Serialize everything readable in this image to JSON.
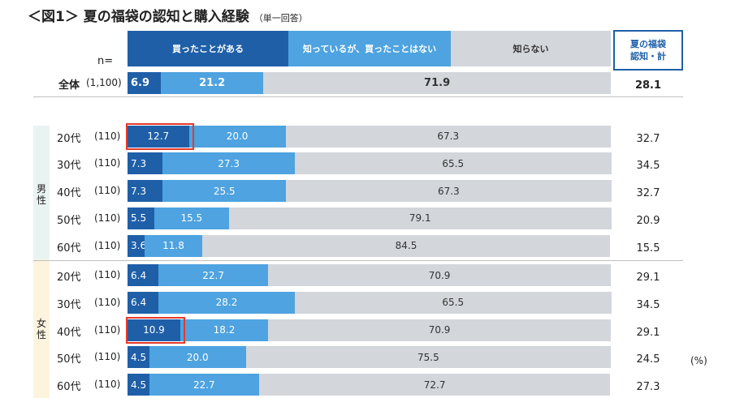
{
  "title": "＜図1＞ 夏の福袋の認知と購入経験",
  "subtitle": "（単一回答）",
  "n_label": "n=",
  "unit": "(%)",
  "awareness_header": [
    "夏の福袋",
    "認知・計"
  ],
  "gender_labels": {
    "male": "男性",
    "female": "女性"
  },
  "colors": {
    "bought": "#1f5fa8",
    "not_bought": "#4ea3e0",
    "never": "#d3d6db",
    "male_band": "#e9f4f2",
    "female_band": "#fdf4de",
    "highlight": "#e53a2c"
  },
  "chart_data": {
    "type": "bar",
    "orientation": "horizontal",
    "stacked": true,
    "series": [
      {
        "name": "買ったことがある",
        "values": [
          6.9,
          12.7,
          7.3,
          7.3,
          5.5,
          3.6,
          6.4,
          6.4,
          10.9,
          4.5,
          4.5
        ]
      },
      {
        "name": "知っているが、買ったことはない",
        "values": [
          21.2,
          20.0,
          27.3,
          25.5,
          15.5,
          11.8,
          22.7,
          28.2,
          18.2,
          20.0,
          22.7
        ]
      },
      {
        "name": "知らない",
        "values": [
          71.9,
          67.3,
          65.5,
          67.3,
          79.1,
          84.5,
          70.9,
          65.5,
          70.9,
          75.5,
          72.7
        ]
      }
    ],
    "rows": [
      {
        "label": "全体",
        "n": "(1,100)",
        "group": "total",
        "awareness": "28.1",
        "labels": [
          "6.9",
          "21.2",
          "71.9"
        ],
        "bold": true,
        "highlight": false
      },
      {
        "label": "20代",
        "n": "(110)",
        "group": "male",
        "awareness": "32.7",
        "labels": [
          "12.7",
          "20.0",
          "67.3"
        ],
        "highlight": true
      },
      {
        "label": "30代",
        "n": "(110)",
        "group": "male",
        "awareness": "34.5",
        "labels": [
          "7.3",
          "27.3",
          "65.5"
        ],
        "highlight": false
      },
      {
        "label": "40代",
        "n": "(110)",
        "group": "male",
        "awareness": "32.7",
        "labels": [
          "7.3",
          "25.5",
          "67.3"
        ],
        "highlight": false
      },
      {
        "label": "50代",
        "n": "(110)",
        "group": "male",
        "awareness": "20.9",
        "labels": [
          "5.5",
          "15.5",
          "79.1"
        ],
        "highlight": false
      },
      {
        "label": "60代",
        "n": "(110)",
        "group": "male",
        "awareness": "15.5",
        "labels": [
          "3.6",
          "11.8",
          "84.5"
        ],
        "highlight": false
      },
      {
        "label": "20代",
        "n": "(110)",
        "group": "female",
        "awareness": "29.1",
        "labels": [
          "6.4",
          "22.7",
          "70.9"
        ],
        "highlight": false
      },
      {
        "label": "30代",
        "n": "(110)",
        "group": "female",
        "awareness": "34.5",
        "labels": [
          "6.4",
          "28.2",
          "65.5"
        ],
        "highlight": false
      },
      {
        "label": "40代",
        "n": "(110)",
        "group": "female",
        "awareness": "29.1",
        "labels": [
          "10.9",
          "18.2",
          "70.9"
        ],
        "highlight": true
      },
      {
        "label": "50代",
        "n": "(110)",
        "group": "female",
        "awareness": "24.5",
        "labels": [
          "4.5",
          "20.0",
          "75.5"
        ],
        "highlight": false
      },
      {
        "label": "60代",
        "n": "(110)",
        "group": "female",
        "awareness": "27.3",
        "labels": [
          "4.5",
          "22.7",
          "72.7"
        ],
        "highlight": false
      }
    ],
    "xlim": [
      0,
      100
    ]
  }
}
